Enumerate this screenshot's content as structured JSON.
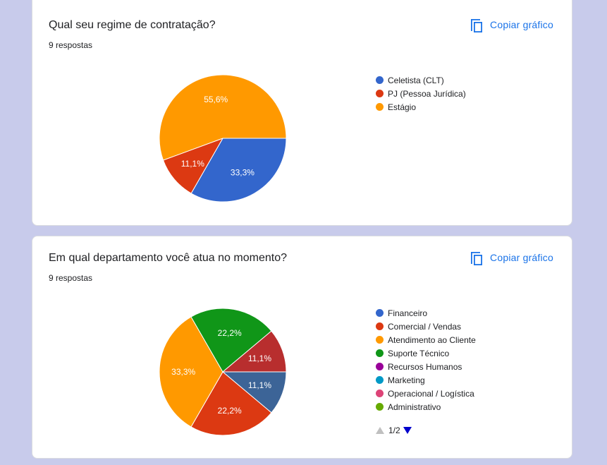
{
  "copy_label": "Copiar gráfico",
  "icon_copy": "copy-icon",
  "chart_data": [
    {
      "type": "pie",
      "title": "Qual seu regime de contratação?",
      "subtitle": "9 respostas",
      "legend_position": "right",
      "categories": [
        "Celetista (CLT)",
        "PJ (Pessoa Jurídica)",
        "Estágio"
      ],
      "values": [
        33.3,
        11.1,
        55.6
      ],
      "labels": [
        "33,3%",
        "11,1%",
        "55,6%"
      ],
      "colors": [
        "#3366cc",
        "#dc3912",
        "#ff9900"
      ]
    },
    {
      "type": "pie",
      "title": "Em qual departamento você atua no momento?",
      "subtitle": "9 respostas",
      "legend_position": "right",
      "legend_page": "1/2",
      "categories": [
        "Financeiro",
        "Comercial / Vendas",
        "Atendimento ao Cliente",
        "Suporte Técnico",
        "Recursos Humanos",
        "Marketing",
        "Operacional / Logística",
        "Administrativo"
      ],
      "values": [
        11.1,
        22.2,
        33.3,
        22.2,
        0,
        0,
        0,
        11.1
      ],
      "labels": [
        "11,1%",
        "22,2%",
        "33,3%",
        "22,2%",
        "",
        "",
        "",
        "11,1%"
      ],
      "colors": [
        "#3366cc",
        "#dc3912",
        "#ff9900",
        "#109618",
        "#990099",
        "#0099c6",
        "#dd4477",
        "#66aa00"
      ],
      "slice_colors": [
        "#3c6497",
        "#dc3912",
        "#ff9900",
        "#109618",
        "#990099",
        "#0099c6",
        "#dd4477",
        "#b82e2e"
      ]
    }
  ]
}
